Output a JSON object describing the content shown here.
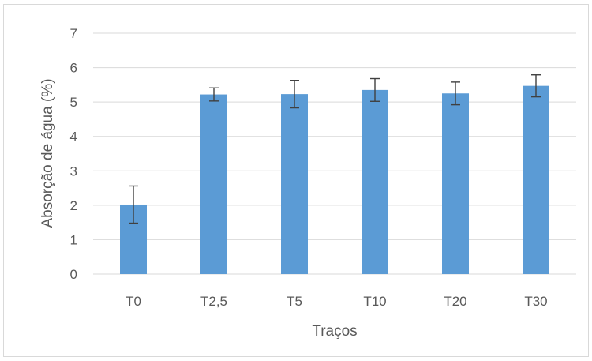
{
  "chart_data": {
    "type": "bar",
    "title": "",
    "xlabel": "Traços",
    "ylabel": "Absorção de água (%)",
    "categories": [
      "T0",
      "T2,5",
      "T5",
      "T10",
      "T20",
      "T30"
    ],
    "values": [
      2.02,
      5.22,
      5.23,
      5.35,
      5.25,
      5.47
    ],
    "error": [
      0.54,
      0.19,
      0.4,
      0.33,
      0.33,
      0.32
    ],
    "ylim": [
      0,
      7
    ],
    "yticks": [
      0,
      1,
      2,
      3,
      4,
      5,
      6,
      7
    ],
    "grid": true,
    "bar_color": "#5b9bd5",
    "error_bar_color": "#404040",
    "gridline_color": "#d9d9d9"
  }
}
